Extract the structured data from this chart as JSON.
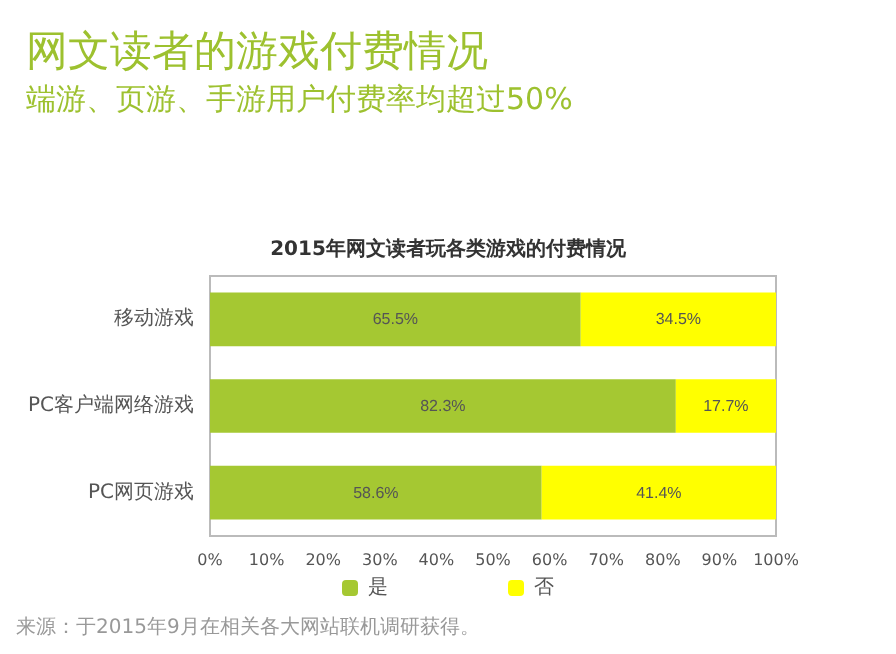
{
  "chart_data": {
    "type": "bar",
    "orientation": "horizontal",
    "stacked": true,
    "title": "网文读者的游戏付费情况",
    "subtitle": "端游、页游、手游用户付费率均超过50%",
    "annotations": [
      "2015年网文读者玩各类游戏的付费情况",
      "来源：于2015年9月在相关各大网站联机调研获得。"
    ],
    "categories": [
      "移动游戏",
      "PC客户端网络游戏",
      "PC网页游戏"
    ],
    "series": [
      {
        "name": "是",
        "color": "#a5c832",
        "values": [
          65.5,
          82.3,
          58.6
        ],
        "value_labels": [
          "65.5%",
          "82.3%",
          "58.6%"
        ]
      },
      {
        "name": "否",
        "color": "#ffff00",
        "values": [
          34.5,
          17.7,
          41.4
        ],
        "value_labels": [
          "34.5%",
          "17.7%",
          "41.4%"
        ]
      }
    ],
    "xlim": [
      0,
      100
    ],
    "xticks": [
      {
        "value": 0,
        "label": "0%"
      },
      {
        "value": 10,
        "label": "10%"
      },
      {
        "value": 20,
        "label": "20%"
      },
      {
        "value": 30,
        "label": "30%"
      },
      {
        "value": 40,
        "label": "40%"
      },
      {
        "value": 50,
        "label": "50%"
      },
      {
        "value": 60,
        "label": "60%"
      },
      {
        "value": 70,
        "label": "70%"
      },
      {
        "value": 80,
        "label": "80%"
      },
      {
        "value": 90,
        "label": "90%"
      },
      {
        "value": 100,
        "label": "100%"
      }
    ],
    "grid": false,
    "legend": "bottom"
  }
}
